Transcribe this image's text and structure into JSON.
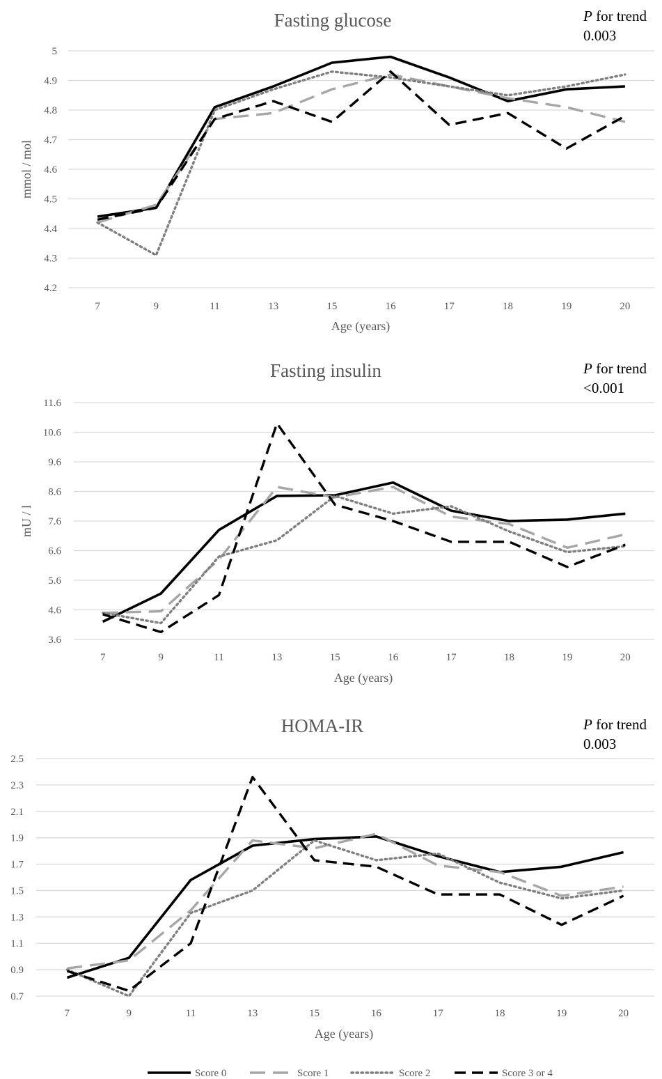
{
  "legend": [
    "Score 0",
    "Score 1",
    "Score 2",
    "Score 3 or 4"
  ],
  "series_styles": [
    {
      "color": "#000000",
      "dash": "solid"
    },
    {
      "color": "#a6a6a6",
      "dash": "dashed"
    },
    {
      "color": "#7f7f7f",
      "dash": "dotted"
    },
    {
      "color": "#000000",
      "dash": "dashed"
    }
  ],
  "chart_data": [
    {
      "type": "line",
      "title": "Fasting glucose",
      "trend_label": "P",
      "trend_label_rest": " for trend",
      "trend_value": "0.003",
      "xlabel": "Age (years)",
      "ylabel": "mmol / mol",
      "categories": [
        "7",
        "9",
        "11",
        "13",
        "15",
        "16",
        "17",
        "18",
        "19",
        "20"
      ],
      "yticks": [
        "4.2",
        "4.3",
        "4.4",
        "4.5",
        "4.6",
        "4.7",
        "4.8",
        "4.9",
        "5"
      ],
      "ylim": [
        4.2,
        5.0
      ],
      "grid": true,
      "series": [
        {
          "name": "Score 0",
          "values": [
            4.44,
            4.47,
            4.81,
            4.88,
            4.96,
            4.98,
            4.91,
            4.83,
            4.87,
            4.88
          ]
        },
        {
          "name": "Score 1",
          "values": [
            4.42,
            4.48,
            4.77,
            4.79,
            4.87,
            4.92,
            4.88,
            4.84,
            4.81,
            4.76
          ]
        },
        {
          "name": "Score 2",
          "values": [
            4.42,
            4.31,
            4.8,
            4.87,
            4.93,
            4.91,
            4.88,
            4.85,
            4.88,
            4.92
          ]
        },
        {
          "name": "Score 3 or 4",
          "values": [
            4.43,
            4.47,
            4.77,
            4.83,
            4.76,
            4.93,
            4.75,
            4.79,
            4.67,
            4.78
          ]
        }
      ]
    },
    {
      "type": "line",
      "title": "Fasting insulin",
      "trend_label": "P",
      "trend_label_rest": " for trend",
      "trend_value": "<0.001",
      "xlabel": "Age (years)",
      "ylabel": "mU / l",
      "categories": [
        "7",
        "9",
        "11",
        "13",
        "15",
        "16",
        "17",
        "18",
        "19",
        "20"
      ],
      "yticks": [
        "3.6",
        "4.6",
        "5.6",
        "6.6",
        "7.6",
        "8.6",
        "9.6",
        "10.6",
        "11.6"
      ],
      "ylim": [
        3.6,
        11.6
      ],
      "grid": true,
      "series": [
        {
          "name": "Score 0",
          "values": [
            4.2,
            5.15,
            7.3,
            8.45,
            8.47,
            8.9,
            7.95,
            7.6,
            7.65,
            7.85
          ]
        },
        {
          "name": "Score 1",
          "values": [
            4.5,
            4.55,
            6.3,
            8.75,
            8.4,
            8.75,
            7.75,
            7.5,
            6.7,
            7.15
          ]
        },
        {
          "name": "Score 2",
          "values": [
            4.5,
            4.15,
            6.4,
            6.95,
            8.45,
            7.85,
            8.1,
            7.25,
            6.55,
            6.75
          ]
        },
        {
          "name": "Score 3 or 4",
          "values": [
            4.45,
            3.85,
            5.1,
            10.9,
            8.15,
            7.6,
            6.9,
            6.9,
            6.05,
            6.8
          ]
        }
      ]
    },
    {
      "type": "line",
      "title": "HOMA-IR",
      "trend_label": "P",
      "trend_label_rest": " for trend",
      "trend_value": "0.003",
      "xlabel": "Age (years)",
      "ylabel": "",
      "categories": [
        "7",
        "9",
        "11",
        "13",
        "15",
        "16",
        "17",
        "18",
        "19",
        "20"
      ],
      "yticks": [
        "0.7",
        "0.9",
        "1.1",
        "1.3",
        "1.5",
        "1.7",
        "1.9",
        "2.1",
        "2.3",
        "2.5"
      ],
      "ylim": [
        0.7,
        2.5
      ],
      "grid": true,
      "series": [
        {
          "name": "Score 0",
          "values": [
            0.84,
            0.99,
            1.58,
            1.84,
            1.89,
            1.91,
            1.76,
            1.64,
            1.68,
            1.79
          ]
        },
        {
          "name": "Score 1",
          "values": [
            0.91,
            0.97,
            1.35,
            1.88,
            1.82,
            1.93,
            1.69,
            1.64,
            1.46,
            1.53
          ]
        },
        {
          "name": "Score 2",
          "values": [
            0.9,
            0.7,
            1.33,
            1.5,
            1.88,
            1.73,
            1.78,
            1.56,
            1.44,
            1.5
          ]
        },
        {
          "name": "Score 3 or 4",
          "values": [
            0.89,
            0.74,
            1.1,
            2.36,
            1.73,
            1.68,
            1.47,
            1.47,
            1.24,
            1.46
          ]
        }
      ]
    }
  ]
}
